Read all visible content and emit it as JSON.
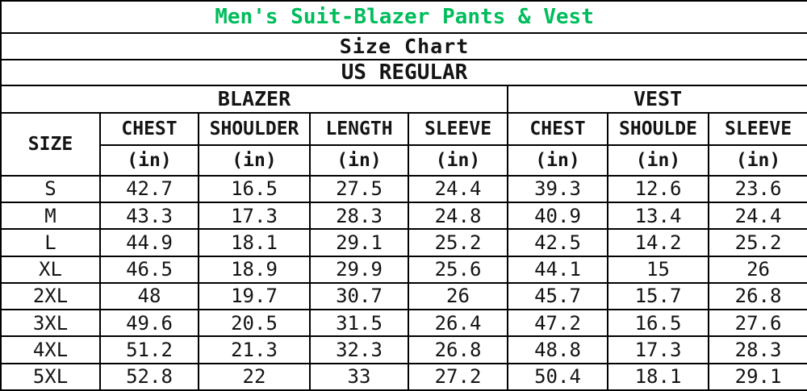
{
  "title": "Men's Suit-Blazer Pants & Vest",
  "subtitle": "Size Chart",
  "fit_label": "US REGULAR",
  "colors": {
    "title_green": "#00bd5c",
    "border": "#000000",
    "text": "#141414",
    "background": "#ffffff"
  },
  "table": {
    "size_header": "SIZE",
    "unit_label": "(in)",
    "blazer": {
      "label": "BLAZER",
      "columns": [
        "CHEST",
        "SHOULDER",
        "LENGTH",
        "SLEEVE"
      ]
    },
    "vest": {
      "label": "VEST",
      "columns": [
        "CHEST",
        "SHOULDE",
        "SLEEVE"
      ]
    },
    "rows": [
      {
        "size": "S",
        "values": [
          "42.7",
          "16.5",
          "27.5",
          "24.4",
          "39.3",
          "12.6",
          "23.6"
        ]
      },
      {
        "size": "M",
        "values": [
          "43.3",
          "17.3",
          "28.3",
          "24.8",
          "40.9",
          "13.4",
          "24.4"
        ]
      },
      {
        "size": "L",
        "values": [
          "44.9",
          "18.1",
          "29.1",
          "25.2",
          "42.5",
          "14.2",
          "25.2"
        ]
      },
      {
        "size": "XL",
        "values": [
          "46.5",
          "18.9",
          "29.9",
          "25.6",
          "44.1",
          "15",
          "26"
        ]
      },
      {
        "size": "2XL",
        "values": [
          "48",
          "19.7",
          "30.7",
          "26",
          "45.7",
          "15.7",
          "26.8"
        ]
      },
      {
        "size": "3XL",
        "values": [
          "49.6",
          "20.5",
          "31.5",
          "26.4",
          "47.2",
          "16.5",
          "27.6"
        ]
      },
      {
        "size": "4XL",
        "values": [
          "51.2",
          "21.3",
          "32.3",
          "26.8",
          "48.8",
          "17.3",
          "28.3"
        ]
      },
      {
        "size": "5XL",
        "values": [
          "52.8",
          "22",
          "33",
          "27.2",
          "50.4",
          "18.1",
          "29.1"
        ]
      }
    ]
  },
  "chart_data": {
    "type": "table",
    "title": "Men's Suit-Blazer Pants & Vest",
    "subtitle": "Size Chart",
    "fit": "US REGULAR",
    "unit": "in",
    "column_groups": [
      {
        "group": "BLAZER",
        "columns": [
          "CHEST",
          "SHOULDER",
          "LENGTH",
          "SLEEVE"
        ]
      },
      {
        "group": "VEST",
        "columns": [
          "CHEST",
          "SHOULDE",
          "SLEEVE"
        ]
      }
    ],
    "sizes": [
      "S",
      "M",
      "L",
      "XL",
      "2XL",
      "3XL",
      "4XL",
      "5XL"
    ],
    "series": [
      {
        "name": "BLAZER CHEST (in)",
        "values": [
          42.7,
          43.3,
          44.9,
          46.5,
          48,
          49.6,
          51.2,
          52.8
        ]
      },
      {
        "name": "BLAZER SHOULDER (in)",
        "values": [
          16.5,
          17.3,
          18.1,
          18.9,
          19.7,
          20.5,
          21.3,
          22
        ]
      },
      {
        "name": "BLAZER LENGTH (in)",
        "values": [
          27.5,
          28.3,
          29.1,
          29.9,
          30.7,
          31.5,
          32.3,
          33
        ]
      },
      {
        "name": "BLAZER SLEEVE (in)",
        "values": [
          24.4,
          24.8,
          25.2,
          25.6,
          26,
          26.4,
          26.8,
          27.2
        ]
      },
      {
        "name": "VEST CHEST (in)",
        "values": [
          39.3,
          40.9,
          42.5,
          44.1,
          45.7,
          47.2,
          48.8,
          50.4
        ]
      },
      {
        "name": "VEST SHOULDE (in)",
        "values": [
          12.6,
          13.4,
          14.2,
          15,
          15.7,
          16.5,
          17.3,
          18.1
        ]
      },
      {
        "name": "VEST SLEEVE (in)",
        "values": [
          23.6,
          24.4,
          25.2,
          26,
          26.8,
          27.6,
          28.3,
          29.1
        ]
      }
    ]
  }
}
